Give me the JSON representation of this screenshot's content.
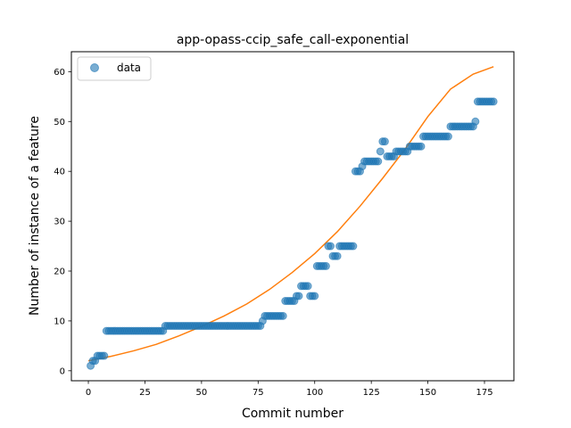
{
  "chart_data": {
    "type": "scatter",
    "title": "app-opass-ccip_safe_call-exponential",
    "xlabel": "Commit number",
    "ylabel": "Number of instance of a feature",
    "xlim": [
      -7.5,
      188
    ],
    "ylim": [
      -2,
      64
    ],
    "xticks": [
      0,
      25,
      50,
      75,
      100,
      125,
      150,
      175
    ],
    "yticks": [
      0,
      10,
      20,
      30,
      40,
      50,
      60
    ],
    "legend": {
      "position": "top-left",
      "entries": [
        "data"
      ]
    },
    "colors": {
      "data": "#1f77b4",
      "fit": "#ff7f0e"
    },
    "series": [
      {
        "name": "data",
        "kind": "scatter",
        "points": [
          [
            1,
            1
          ],
          [
            2,
            2
          ],
          [
            3,
            2
          ],
          [
            4,
            3
          ],
          [
            5,
            3
          ],
          [
            6,
            3
          ],
          [
            7,
            3
          ],
          [
            8,
            8
          ],
          [
            9,
            8
          ],
          [
            10,
            8
          ],
          [
            11,
            8
          ],
          [
            12,
            8
          ],
          [
            13,
            8
          ],
          [
            14,
            8
          ],
          [
            15,
            8
          ],
          [
            16,
            8
          ],
          [
            17,
            8
          ],
          [
            18,
            8
          ],
          [
            19,
            8
          ],
          [
            20,
            8
          ],
          [
            21,
            8
          ],
          [
            22,
            8
          ],
          [
            23,
            8
          ],
          [
            24,
            8
          ],
          [
            25,
            8
          ],
          [
            26,
            8
          ],
          [
            27,
            8
          ],
          [
            28,
            8
          ],
          [
            29,
            8
          ],
          [
            30,
            8
          ],
          [
            31,
            8
          ],
          [
            32,
            8
          ],
          [
            33,
            8
          ],
          [
            34,
            9
          ],
          [
            35,
            9
          ],
          [
            36,
            9
          ],
          [
            37,
            9
          ],
          [
            38,
            9
          ],
          [
            39,
            9
          ],
          [
            40,
            9
          ],
          [
            41,
            9
          ],
          [
            42,
            9
          ],
          [
            43,
            9
          ],
          [
            44,
            9
          ],
          [
            45,
            9
          ],
          [
            46,
            9
          ],
          [
            47,
            9
          ],
          [
            48,
            9
          ],
          [
            49,
            9
          ],
          [
            50,
            9
          ],
          [
            51,
            9
          ],
          [
            52,
            9
          ],
          [
            53,
            9
          ],
          [
            54,
            9
          ],
          [
            55,
            9
          ],
          [
            56,
            9
          ],
          [
            57,
            9
          ],
          [
            58,
            9
          ],
          [
            59,
            9
          ],
          [
            60,
            9
          ],
          [
            61,
            9
          ],
          [
            62,
            9
          ],
          [
            63,
            9
          ],
          [
            64,
            9
          ],
          [
            65,
            9
          ],
          [
            66,
            9
          ],
          [
            67,
            9
          ],
          [
            68,
            9
          ],
          [
            69,
            9
          ],
          [
            70,
            9
          ],
          [
            71,
            9
          ],
          [
            72,
            9
          ],
          [
            73,
            9
          ],
          [
            74,
            9
          ],
          [
            75,
            9
          ],
          [
            76,
            9
          ],
          [
            77,
            10
          ],
          [
            78,
            11
          ],
          [
            79,
            11
          ],
          [
            80,
            11
          ],
          [
            81,
            11
          ],
          [
            82,
            11
          ],
          [
            83,
            11
          ],
          [
            84,
            11
          ],
          [
            85,
            11
          ],
          [
            86,
            11
          ],
          [
            87,
            14
          ],
          [
            88,
            14
          ],
          [
            89,
            14
          ],
          [
            90,
            14
          ],
          [
            91,
            14
          ],
          [
            92,
            15
          ],
          [
            93,
            15
          ],
          [
            94,
            17
          ],
          [
            95,
            17
          ],
          [
            96,
            17
          ],
          [
            97,
            17
          ],
          [
            98,
            15
          ],
          [
            99,
            15
          ],
          [
            100,
            15
          ],
          [
            101,
            21
          ],
          [
            102,
            21
          ],
          [
            103,
            21
          ],
          [
            104,
            21
          ],
          [
            105,
            21
          ],
          [
            106,
            25
          ],
          [
            107,
            25
          ],
          [
            108,
            23
          ],
          [
            109,
            23
          ],
          [
            110,
            23
          ],
          [
            111,
            25
          ],
          [
            112,
            25
          ],
          [
            113,
            25
          ],
          [
            114,
            25
          ],
          [
            115,
            25
          ],
          [
            116,
            25
          ],
          [
            117,
            25
          ],
          [
            118,
            40
          ],
          [
            119,
            40
          ],
          [
            120,
            40
          ],
          [
            121,
            41
          ],
          [
            122,
            42
          ],
          [
            123,
            42
          ],
          [
            124,
            42
          ],
          [
            125,
            42
          ],
          [
            126,
            42
          ],
          [
            127,
            42
          ],
          [
            128,
            42
          ],
          [
            129,
            44
          ],
          [
            130,
            46
          ],
          [
            131,
            46
          ],
          [
            132,
            43
          ],
          [
            133,
            43
          ],
          [
            134,
            43
          ],
          [
            135,
            43
          ],
          [
            136,
            44
          ],
          [
            137,
            44
          ],
          [
            138,
            44
          ],
          [
            139,
            44
          ],
          [
            140,
            44
          ],
          [
            141,
            44
          ],
          [
            142,
            45
          ],
          [
            143,
            45
          ],
          [
            144,
            45
          ],
          [
            145,
            45
          ],
          [
            146,
            45
          ],
          [
            147,
            45
          ],
          [
            148,
            47
          ],
          [
            149,
            47
          ],
          [
            150,
            47
          ],
          [
            151,
            47
          ],
          [
            152,
            47
          ],
          [
            153,
            47
          ],
          [
            154,
            47
          ],
          [
            155,
            47
          ],
          [
            156,
            47
          ],
          [
            157,
            47
          ],
          [
            158,
            47
          ],
          [
            159,
            47
          ],
          [
            160,
            49
          ],
          [
            161,
            49
          ],
          [
            162,
            49
          ],
          [
            163,
            49
          ],
          [
            164,
            49
          ],
          [
            165,
            49
          ],
          [
            166,
            49
          ],
          [
            167,
            49
          ],
          [
            168,
            49
          ],
          [
            169,
            49
          ],
          [
            170,
            49
          ],
          [
            171,
            50
          ],
          [
            172,
            54
          ],
          [
            173,
            54
          ],
          [
            174,
            54
          ],
          [
            175,
            54
          ],
          [
            176,
            54
          ],
          [
            177,
            54
          ],
          [
            178,
            54
          ],
          [
            179,
            54
          ]
        ]
      },
      {
        "kind": "line",
        "points": [
          [
            0,
            2.0
          ],
          [
            10,
            2.9
          ],
          [
            20,
            4.0
          ],
          [
            30,
            5.3
          ],
          [
            40,
            7.0
          ],
          [
            50,
            8.9
          ],
          [
            60,
            11.0
          ],
          [
            70,
            13.4
          ],
          [
            80,
            16.3
          ],
          [
            90,
            19.7
          ],
          [
            100,
            23.5
          ],
          [
            110,
            27.9
          ],
          [
            120,
            33.0
          ],
          [
            130,
            38.6
          ],
          [
            140,
            44.5
          ],
          [
            150,
            51.0
          ],
          [
            160,
            56.5
          ],
          [
            170,
            59.5
          ],
          [
            179,
            61.0
          ]
        ]
      }
    ]
  }
}
